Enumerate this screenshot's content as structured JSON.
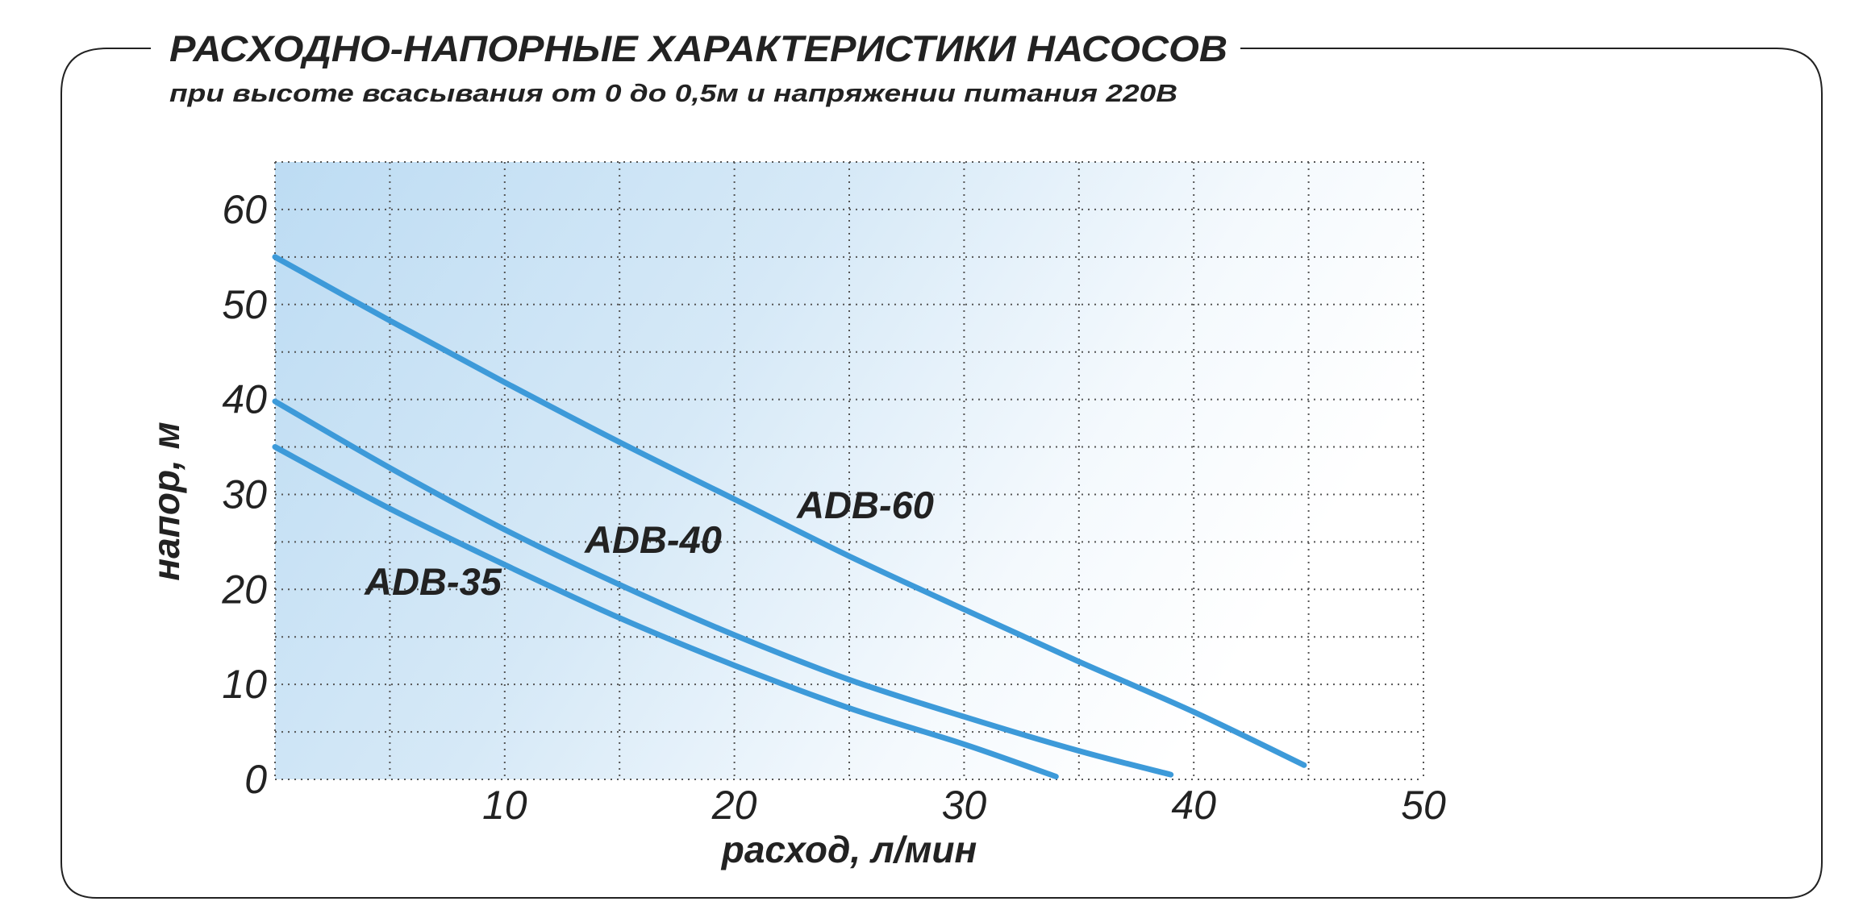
{
  "header": {
    "title": "РАСХОДНО-НАПОРНЫЕ ХАРАКТЕРИСТИКИ НАСОСОВ",
    "subtitle": "при высоте всасывания от 0 до 0,5м и напряжении питания 220В"
  },
  "colors": {
    "line": "#3d9ad9",
    "frame": "#222222",
    "text": "#222222",
    "grid": "#555555",
    "bg_blue": "#bddcf3",
    "bg_white": "#ffffff"
  },
  "chart_data": {
    "type": "line",
    "xlabel": "расход, л/мин",
    "ylabel": "напор, м",
    "xlim": [
      0,
      50
    ],
    "ylim": [
      0,
      65
    ],
    "x_ticks": [
      10,
      20,
      30,
      40,
      50
    ],
    "x_tick_labels": [
      "10",
      "20",
      "30",
      "40",
      "50"
    ],
    "y_ticks": [
      0,
      10,
      20,
      30,
      40,
      50,
      60
    ],
    "y_tick_labels": [
      "0",
      "10",
      "20",
      "30",
      "40",
      "50",
      "60"
    ],
    "x_grid_step": 5,
    "y_grid_step": 5,
    "grid": true,
    "legend": "inline labels",
    "series": [
      {
        "name": "ADB-35",
        "x": [
          0,
          5,
          10,
          15,
          20,
          25,
          30,
          34
        ],
        "y": [
          35,
          28.5,
          22.6,
          17,
          12,
          7.5,
          3.7,
          0.3
        ]
      },
      {
        "name": "ADB-40",
        "x": [
          0,
          5,
          10,
          15,
          20,
          25,
          30,
          35,
          39
        ],
        "y": [
          39.8,
          32.8,
          26.3,
          20.5,
          15.2,
          10.5,
          6.6,
          3.0,
          0.5
        ]
      },
      {
        "name": "ADB-60",
        "x": [
          0,
          5,
          10,
          15,
          20,
          25,
          30,
          35,
          40,
          44.8
        ],
        "y": [
          55,
          48.3,
          41.8,
          35.5,
          29.5,
          23.5,
          17.9,
          12.4,
          7.1,
          1.5
        ]
      }
    ]
  }
}
